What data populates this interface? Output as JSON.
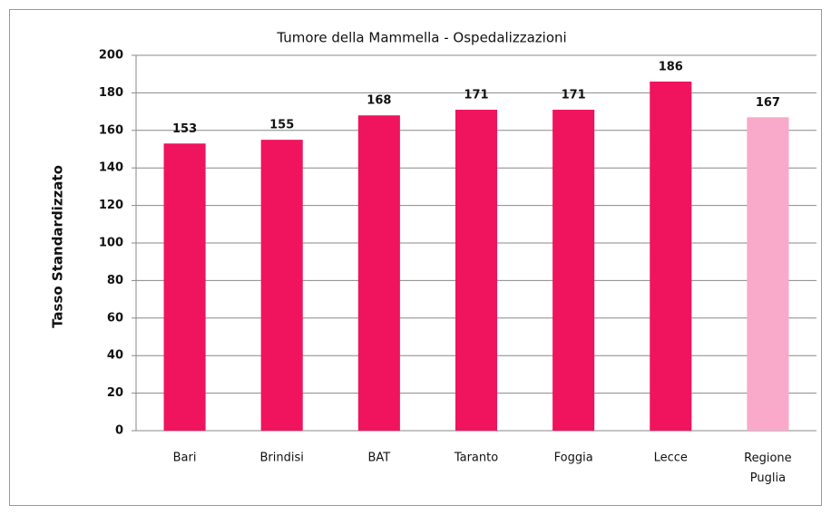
{
  "chart_data": {
    "type": "bar",
    "title": "Tumore della Mammella - Ospedalizzazioni",
    "y_label": "Tasso Standardizzato",
    "categories": [
      "Bari",
      "Brindisi",
      "BAT",
      "Taranto",
      "Foggia",
      "Lecce",
      "Regione Puglia"
    ],
    "values": [
      153,
      155,
      168,
      171,
      171,
      186,
      167
    ],
    "colors": [
      "#f0135e",
      "#f0135e",
      "#f0135e",
      "#f0135e",
      "#f0135e",
      "#f0135e",
      "#f9a9c9"
    ],
    "ylim": [
      0,
      200
    ],
    "yticks": [
      0,
      20,
      40,
      60,
      80,
      100,
      120,
      140,
      160,
      180,
      200
    ],
    "grid": true
  }
}
